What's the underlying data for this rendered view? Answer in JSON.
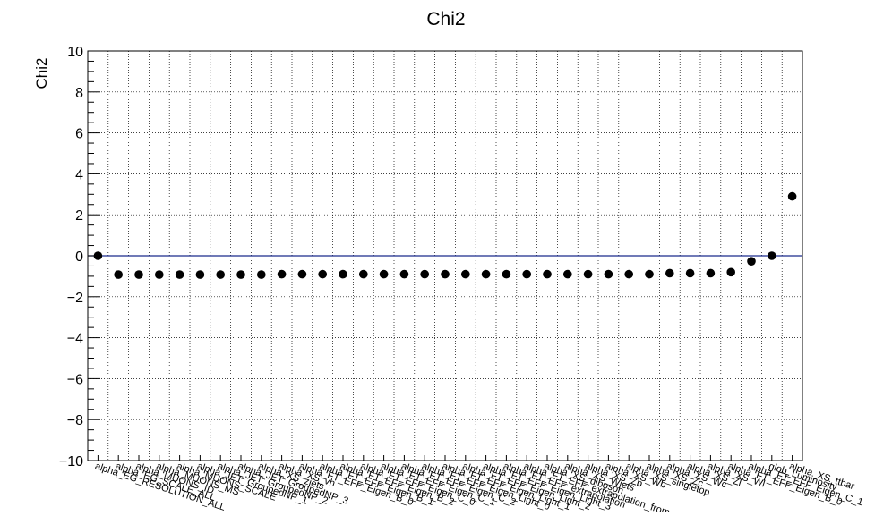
{
  "chart_data": {
    "type": "scatter",
    "title": "Chi2",
    "xlabel": "",
    "ylabel": "Chi2",
    "ylim": [
      -10,
      10
    ],
    "yticks": [
      -10,
      -8,
      -6,
      -4,
      -2,
      0,
      2,
      4,
      6,
      8,
      10
    ],
    "grid": true,
    "reference_line": 0,
    "colors": {
      "markers": "#000000",
      "reference_line": "#1a2a8c",
      "grid": "#000000"
    },
    "categories": [
      "alpha_EG_RESOLUTION_ALL",
      "alpha_EG_SCALE_ALL",
      "alpha_MUONS_ID",
      "alpha_MUONS_MS",
      "alpha_MUONS_SCALE",
      "alpha_JET_GroupedNP_1",
      "alpha_JET_GroupedNP_2",
      "alpha_JET_GroupedNP_3",
      "alpha_XS_zjets",
      "alpha_XS_vh",
      "alpha_FT_EFF_Eigen_B_0",
      "alpha_FT_EFF_Eigen_B_1",
      "alpha_FT_EFF_Eigen_B_2",
      "alpha_FT_EFF_Eigen_C_0",
      "alpha_FT_EFF_Eigen_C_1",
      "alpha_FT_EFF_Eigen_C_2",
      "alpha_FT_EFF_Eigen_Light_0",
      "alpha_FT_EFF_Eigen_Light_1",
      "alpha_FT_EFF_Eigen_Light_2",
      "alpha_FT_EFF_Eigen_Light_3",
      "alpha_FT_EFF_extrapolation",
      "alpha_FT_EFF_extrapolation_from_charm",
      "alpha_XS_diboson",
      "alpha_XS_Wjets",
      "alpha_XS_Zb",
      "alpha_XS_Wb",
      "alpha_XS_singletop",
      "alpha_XS_Zc",
      "alpha_XS_Wc",
      "alpha_XS_Zl",
      "alpha_XS_Wl",
      "alpha_FT_EFF_Eigen_B_0",
      "alpha_FT_EFF_Eigen_C_1",
      "glob_Luminosity",
      "alpha_XS_ttbar"
    ],
    "values": [
      0.0,
      -0.92,
      -0.92,
      -0.92,
      -0.92,
      -0.92,
      -0.92,
      -0.92,
      -0.92,
      -0.9,
      -0.9,
      -0.9,
      -0.9,
      -0.9,
      -0.9,
      -0.9,
      -0.9,
      -0.9,
      -0.9,
      -0.9,
      -0.9,
      -0.9,
      -0.9,
      -0.9,
      -0.9,
      -0.9,
      -0.9,
      -0.9,
      -0.85,
      -0.85,
      -0.85,
      -0.8,
      -0.27,
      0.0,
      2.9
    ]
  }
}
